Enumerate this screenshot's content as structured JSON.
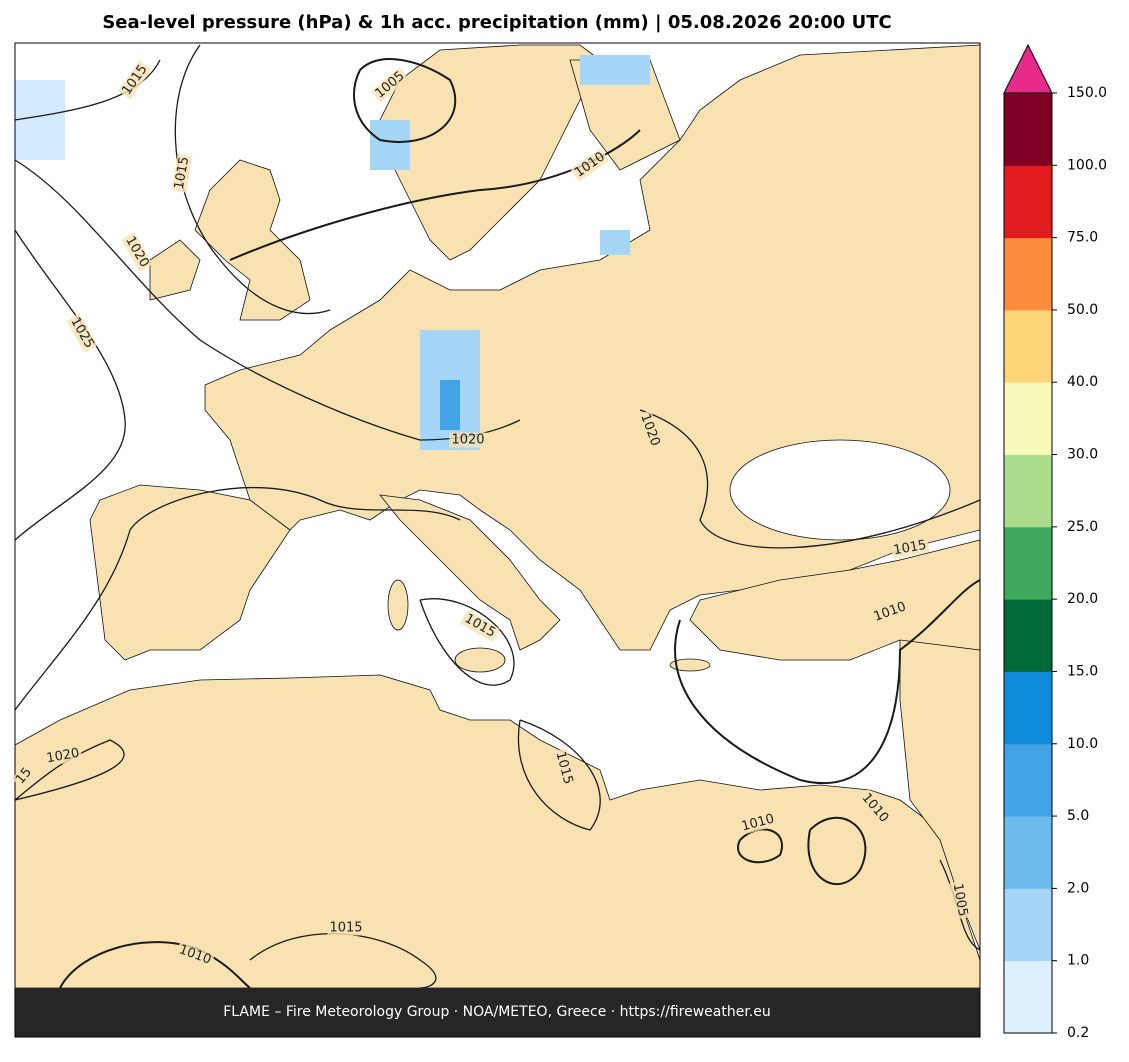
{
  "title": "Sea-level pressure (hPa) & 1h acc. precipitation (mm)  |  05.08.2026 20:00 UTC",
  "footer": "FLAME – Fire Meteorology Group · NOA/METEO, Greece · https://fireweather.eu",
  "colorbar": {
    "ticks": [
      {
        "value": 0.2,
        "label": "0.2"
      },
      {
        "value": 1,
        "label": "1.0"
      },
      {
        "value": 2,
        "label": "2.0"
      },
      {
        "value": 5,
        "label": "5.0"
      },
      {
        "value": 10,
        "label": "10.0"
      },
      {
        "value": 15,
        "label": "15.0"
      },
      {
        "value": 20,
        "label": "20.0"
      },
      {
        "value": 25,
        "label": "25.0"
      },
      {
        "value": 30,
        "label": "30.0"
      },
      {
        "value": 40,
        "label": "40.0"
      },
      {
        "value": 50,
        "label": "50.0"
      },
      {
        "value": 75,
        "label": "75.0"
      },
      {
        "value": 100,
        "label": "100.0"
      },
      {
        "value": 150,
        "label": "150.0"
      }
    ],
    "colors": [
      "#ddf0fd",
      "#a6d6f7",
      "#6dbbed",
      "#42a3e6",
      "#0e8bdb",
      "#00693a",
      "#3fa95b",
      "#abdc8c",
      "#f7f9b8",
      "#fed679",
      "#fd8c3c",
      "#e21c1e",
      "#800025"
    ],
    "extend_color": "#e72a8a"
  },
  "contour_labels": [
    "1015",
    "1015",
    "1005",
    "1010",
    "1020",
    "1025",
    "1020",
    "1020",
    "1015",
    "1015",
    "1010",
    "1020",
    "15",
    "1015",
    "1010",
    "1010",
    "1015",
    "1010",
    "1005"
  ]
}
